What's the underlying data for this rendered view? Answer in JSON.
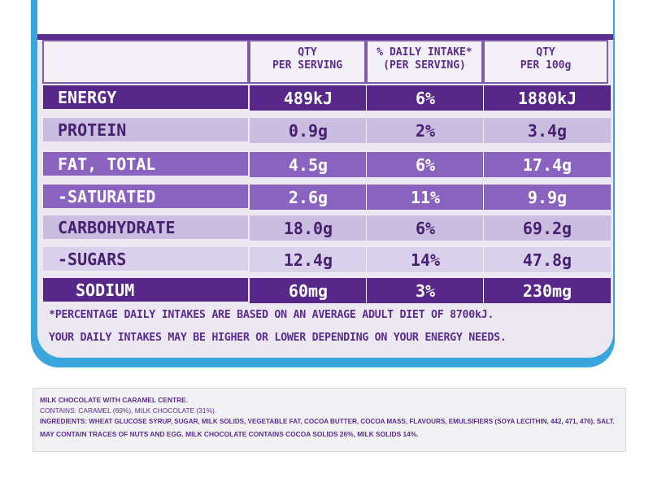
{
  "headers": {
    "col1": [
      "QTY",
      "PER SERVING"
    ],
    "col2": [
      "% DAILY INTAKE*",
      "(PER SERVING)"
    ],
    "col3": [
      "QTY",
      "PER 100g"
    ]
  },
  "rows": [
    {
      "label": "ENERGY",
      "per_serving": "489kJ",
      "daily": "6%",
      "per_100g": "1880kJ",
      "style": "dark"
    },
    {
      "label": "PROTEIN",
      "per_serving": "0.9g",
      "daily": "2%",
      "per_100g": "3.4g",
      "style": "light"
    },
    {
      "label": "FAT, TOTAL",
      "per_serving": "4.5g",
      "daily": "6%",
      "per_100g": "17.4g",
      "style": "mid"
    },
    {
      "label": "-SATURATED",
      "per_serving": "2.6g",
      "daily": "11%",
      "per_100g": "9.9g",
      "style": "mid"
    },
    {
      "label": "CARBOHYDRATE",
      "per_serving": "18.0g",
      "daily": "6%",
      "per_100g": "69.2g",
      "style": "light"
    },
    {
      "label": "-SUGARS",
      "per_serving": "12.4g",
      "daily": "14%",
      "per_100g": "47.8g",
      "style": "pale"
    },
    {
      "label": "SODIUM",
      "per_serving": "60mg",
      "daily": "3%",
      "per_100g": "230mg",
      "style": "dark"
    }
  ],
  "footnote": {
    "line1": "*PERCENTAGE DAILY INTAKES ARE BASED ON AN AVERAGE ADULT DIET OF 8700kJ.",
    "line2": "YOUR DAILY INTAKES MAY BE HIGHER OR LOWER DEPENDING ON YOUR ENERGY NEEDS."
  },
  "ingredients": {
    "title": "MILK CHOCOLATE WITH CARAMEL CENTRE.",
    "contains": "CONTAINS: CARAMEL (69%), MILK CHOCOLATE (31%).",
    "list": "INGREDIENTS: WHEAT GLUCOSE SYRUP, SUGAR, MILK SOLIDS, VEGETABLE FAT, COCOA BUTTER, COCOA MASS, FLAVOURS, EMULSIFIERS (SOYA LECITHIN, 442, 471, 476), SALT.",
    "allergens": "MAY CONTAIN TRACES OF NUTS AND EGG. MILK CHOCOLATE CONTAINS COCOA SOLIDS 26%, MILK SOLIDS 14%."
  },
  "colors": {
    "brand_purple": "#5b2d90",
    "panel_blue": "#3aa6dd"
  }
}
